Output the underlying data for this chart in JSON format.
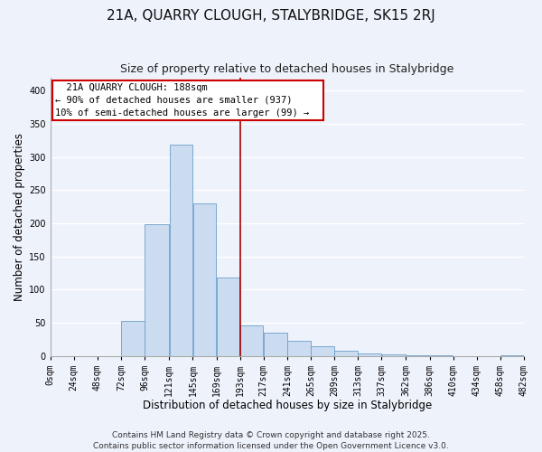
{
  "title": "21A, QUARRY CLOUGH, STALYBRIDGE, SK15 2RJ",
  "subtitle": "Size of property relative to detached houses in Stalybridge",
  "xlabel": "Distribution of detached houses by size in Stalybridge",
  "ylabel": "Number of detached properties",
  "bin_edges": [
    0,
    24,
    48,
    72,
    96,
    121,
    145,
    169,
    193,
    217,
    241,
    265,
    289,
    313,
    337,
    362,
    386,
    410,
    434,
    458,
    482
  ],
  "bin_labels": [
    "0sqm",
    "24sqm",
    "48sqm",
    "72sqm",
    "96sqm",
    "121sqm",
    "145sqm",
    "169sqm",
    "193sqm",
    "217sqm",
    "241sqm",
    "265sqm",
    "289sqm",
    "313sqm",
    "337sqm",
    "362sqm",
    "386sqm",
    "410sqm",
    "434sqm",
    "458sqm",
    "482sqm"
  ],
  "bar_heights": [
    0,
    0,
    0,
    52,
    198,
    318,
    230,
    118,
    46,
    35,
    23,
    15,
    8,
    4,
    2,
    1,
    1,
    0,
    0,
    1
  ],
  "bar_color": "#ccdcf0",
  "bar_edge_color": "#6aa0cc",
  "vline_x": 193,
  "vline_color": "#aa0000",
  "annotation_title": "21A QUARRY CLOUGH: 188sqm",
  "annotation_line1": "← 90% of detached houses are smaller (937)",
  "annotation_line2": "10% of semi-detached houses are larger (99) →",
  "annotation_box_color": "#ffffff",
  "annotation_box_edge": "#cc0000",
  "ylim": [
    0,
    420
  ],
  "yticks": [
    0,
    50,
    100,
    150,
    200,
    250,
    300,
    350,
    400
  ],
  "footer1": "Contains HM Land Registry data © Crown copyright and database right 2025.",
  "footer2": "Contains public sector information licensed under the Open Government Licence v3.0.",
  "bg_color": "#eef2fb",
  "grid_color": "#ffffff",
  "title_fontsize": 11,
  "subtitle_fontsize": 9,
  "xlabel_fontsize": 8.5,
  "ylabel_fontsize": 8.5,
  "tick_fontsize": 7,
  "footer_fontsize": 6.5,
  "annot_fontsize": 7.5
}
